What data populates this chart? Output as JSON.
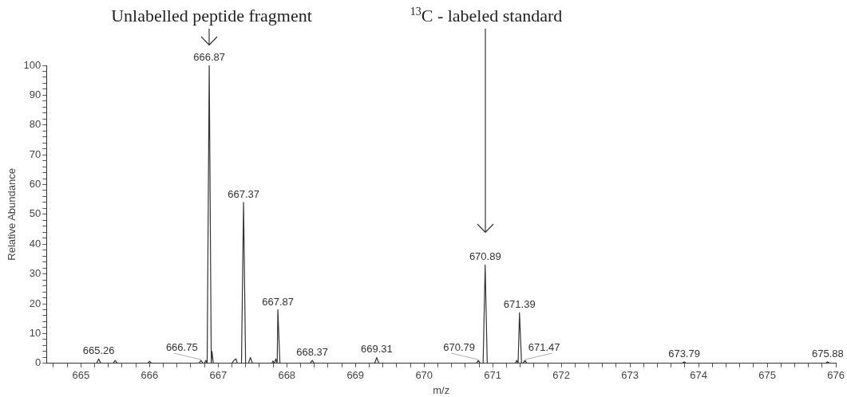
{
  "chart_data": {
    "type": "line",
    "xlabel": "m/z",
    "ylabel": "Relative Abundance",
    "color": "#333333",
    "grid": false,
    "legend": false,
    "marker": "none",
    "line_style": "solid",
    "x": [
      664.5,
      665.23,
      665.26,
      665.29,
      665.47,
      665.5,
      665.53,
      665.97,
      666.0,
      666.03,
      666.72,
      666.75,
      666.78,
      666.8,
      666.82,
      666.84,
      666.87,
      666.9,
      666.91,
      666.93,
      667.2,
      667.23,
      667.26,
      667.28,
      667.34,
      667.37,
      667.4,
      667.44,
      667.47,
      667.5,
      667.78,
      667.8,
      667.82,
      667.84,
      667.86,
      667.87,
      667.9,
      668.34,
      668.37,
      668.4,
      669.28,
      669.31,
      669.34,
      670.76,
      670.79,
      670.82,
      670.86,
      670.89,
      670.92,
      671.33,
      671.35,
      671.37,
      671.39,
      671.42,
      671.44,
      671.47,
      671.5,
      673.76,
      673.79,
      673.82,
      675.85,
      675.88,
      675.91,
      676
    ],
    "values": [
      0,
      0,
      1.5,
      0,
      0,
      1,
      0,
      0,
      0.7,
      0,
      0,
      1,
      0,
      0,
      1,
      0,
      100,
      0,
      4,
      0,
      0,
      1,
      1.5,
      0,
      0,
      54,
      0,
      0,
      2,
      0,
      0,
      0.8,
      0,
      1.5,
      0,
      18,
      0,
      0,
      1,
      0,
      0,
      2,
      0,
      0,
      1,
      0,
      0,
      33,
      0,
      0,
      1,
      0,
      17,
      0,
      0,
      1,
      0,
      0,
      0.5,
      0,
      0,
      0.5,
      0,
      0
    ],
    "xlim": [
      664.5,
      676
    ],
    "xticks": [
      {
        "value": 664.6,
        "label": null
      },
      {
        "value": 664.8,
        "label": null
      },
      665,
      {
        "value": 665.2,
        "label": null
      },
      {
        "value": 665.4,
        "label": null
      },
      {
        "value": 665.6,
        "label": null
      },
      {
        "value": 665.8,
        "label": null
      },
      666,
      {
        "value": 666.2,
        "label": null
      },
      {
        "value": 666.4,
        "label": null
      },
      {
        "value": 666.6,
        "label": null
      },
      {
        "value": 666.8,
        "label": null
      },
      667,
      {
        "value": 667.2,
        "label": null
      },
      {
        "value": 667.4,
        "label": null
      },
      {
        "value": 667.6,
        "label": null
      },
      {
        "value": 667.8,
        "label": null
      },
      668,
      {
        "value": 668.2,
        "label": null
      },
      {
        "value": 668.4,
        "label": null
      },
      {
        "value": 668.6,
        "label": null
      },
      {
        "value": 668.8,
        "label": null
      },
      669,
      {
        "value": 669.2,
        "label": null
      },
      {
        "value": 669.4,
        "label": null
      },
      {
        "value": 669.6,
        "label": null
      },
      {
        "value": 669.8,
        "label": null
      },
      670,
      {
        "value": 670.2,
        "label": null
      },
      {
        "value": 670.4,
        "label": null
      },
      {
        "value": 670.6,
        "label": null
      },
      {
        "value": 670.8,
        "label": null
      },
      671,
      {
        "value": 671.2,
        "label": null
      },
      {
        "value": 671.4,
        "label": null
      },
      {
        "value": 671.6,
        "label": null
      },
      {
        "value": 671.8,
        "label": null
      },
      672,
      {
        "value": 672.2,
        "label": null
      },
      {
        "value": 672.4,
        "label": null
      },
      {
        "value": 672.6,
        "label": null
      },
      {
        "value": 672.8,
        "label": null
      },
      673,
      {
        "value": 673.2,
        "label": null
      },
      {
        "value": 673.4,
        "label": null
      },
      {
        "value": 673.6,
        "label": null
      },
      {
        "value": 673.8,
        "label": null
      },
      674,
      {
        "value": 674.2,
        "label": null
      },
      {
        "value": 674.4,
        "label": null
      },
      {
        "value": 674.6,
        "label": null
      },
      {
        "value": 674.8,
        "label": null
      },
      675,
      {
        "value": 675.2,
        "label": null
      },
      {
        "value": 675.4,
        "label": null
      },
      {
        "value": 675.6,
        "label": null
      },
      {
        "value": 675.8,
        "label": null
      },
      676
    ],
    "ylim": [
      0,
      100
    ],
    "yticks": [
      0,
      {
        "value": 2,
        "label": null
      },
      {
        "value": 4,
        "label": null
      },
      {
        "value": 6,
        "label": null
      },
      {
        "value": 8,
        "label": null
      },
      10,
      {
        "value": 12,
        "label": null
      },
      {
        "value": 14,
        "label": null
      },
      {
        "value": 16,
        "label": null
      },
      {
        "value": 18,
        "label": null
      },
      20,
      {
        "value": 22,
        "label": null
      },
      {
        "value": 24,
        "label": null
      },
      {
        "value": 26,
        "label": null
      },
      {
        "value": 28,
        "label": null
      },
      30,
      {
        "value": 32,
        "label": null
      },
      {
        "value": 34,
        "label": null
      },
      {
        "value": 36,
        "label": null
      },
      {
        "value": 38,
        "label": null
      },
      40,
      {
        "value": 42,
        "label": null
      },
      {
        "value": 44,
        "label": null
      },
      {
        "value": 46,
        "label": null
      },
      {
        "value": 48,
        "label": null
      },
      50,
      {
        "value": 52,
        "label": null
      },
      {
        "value": 54,
        "label": null
      },
      {
        "value": 56,
        "label": null
      },
      {
        "value": 58,
        "label": null
      },
      60,
      {
        "value": 62,
        "label": null
      },
      {
        "value": 64,
        "label": null
      },
      {
        "value": 66,
        "label": null
      },
      {
        "value": 68,
        "label": null
      },
      70,
      {
        "value": 72,
        "label": null
      },
      {
        "value": 74,
        "label": null
      },
      {
        "value": 76,
        "label": null
      },
      {
        "value": 78,
        "label": null
      },
      80,
      {
        "value": 82,
        "label": null
      },
      {
        "value": 84,
        "label": null
      },
      {
        "value": 86,
        "label": null
      },
      {
        "value": 88,
        "label": null
      },
      90,
      {
        "value": 92,
        "label": null
      },
      {
        "value": 94,
        "label": null
      },
      {
        "value": 96,
        "label": null
      },
      {
        "value": 98,
        "label": null
      },
      100
    ],
    "annotations": [
      "Unlabelled peptide fragment",
      "$^{13}$C - labeled standard",
      {
        "text": "665.26",
        "x": 665.26,
        "y": 1.5
      },
      {
        "text": "666.75",
        "x": 666.75,
        "y": 1
      },
      {
        "text": "666.87",
        "x": 666.87,
        "y": 100
      },
      {
        "text": "667.37",
        "x": 667.37,
        "y": 54
      },
      {
        "text": "667.87",
        "x": 667.87,
        "y": 18
      },
      {
        "text": "668.37",
        "x": 668.37,
        "y": 1
      },
      {
        "text": "669.31",
        "x": 669.31,
        "y": 2
      },
      {
        "text": "670.79",
        "x": 670.79,
        "y": 1
      },
      {
        "text": "670.89",
        "x": 670.89,
        "y": 33
      },
      {
        "text": "671.39",
        "x": 671.39,
        "y": 17
      },
      {
        "text": "671.47",
        "x": 671.47,
        "y": 1
      },
      {
        "text": "673.79",
        "x": 673.79,
        "y": 0.5
      },
      {
        "text": "675.88",
        "x": 675.88,
        "y": 0.5
      }
    ]
  }
}
